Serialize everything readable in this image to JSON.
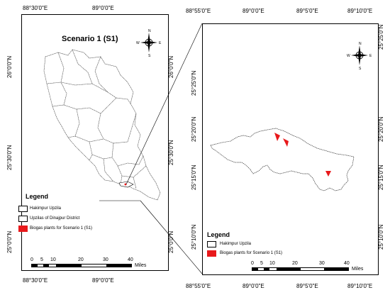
{
  "left_map": {
    "title": "Scenario 1 (S1)",
    "top_ticks": [
      "88°30'0\"E",
      "89°0'0\"E"
    ],
    "bottom_ticks": [
      "88°30'0\"E",
      "89°0'0\"E"
    ],
    "left_ticks": [
      "26°0'0\"N",
      "25°30'0\"N",
      "25°0'0\"N"
    ],
    "right_ticks": [
      "26°0'0\"N",
      "25°30'0\"N",
      "25°0'0\"N"
    ],
    "legend": {
      "title": "Legend",
      "items": [
        {
          "label": "Hakimpur Upzila"
        },
        {
          "label": "Upzilas of Dinajpur District"
        },
        {
          "label": "Biogas plants for Scenario 1 (S1)"
        }
      ]
    },
    "scalebar": {
      "ticks": [
        "0",
        "5",
        "10",
        "20",
        "30",
        "40"
      ],
      "unit": "Miles"
    }
  },
  "right_map": {
    "top_ticks": [
      "88°55'0\"E",
      "89°0'0\"E",
      "89°5'0\"E",
      "89°10'0\"E"
    ],
    "bottom_ticks": [
      "88°55'0\"E",
      "89°0'0\"E",
      "89°5'0\"E",
      "89°10'0\"E"
    ],
    "left_ticks": [
      "25°25'0\"N",
      "25°20'0\"N",
      "25°15'0\"N",
      "25°10'0\"N"
    ],
    "right_ticks": [
      "25°25'0\"N",
      "25°20'0\"N",
      "25°15'0\"N",
      "25°10'0\"N"
    ],
    "legend": {
      "title": "Legend",
      "items": [
        {
          "label": "Hakimpur Upzila"
        },
        {
          "label": "Biogas plants for Scenario 1 (S1)"
        }
      ]
    },
    "scalebar": {
      "ticks": [
        "0",
        "5",
        "10",
        "20",
        "30",
        "40"
      ],
      "unit": "Miles"
    }
  },
  "north_arrow": {
    "n": "N",
    "s": "S",
    "e": "E",
    "w": "W"
  },
  "colors": {
    "biogas_marker": "#e8191b",
    "boundary": "#333333",
    "frame": "#000000"
  }
}
